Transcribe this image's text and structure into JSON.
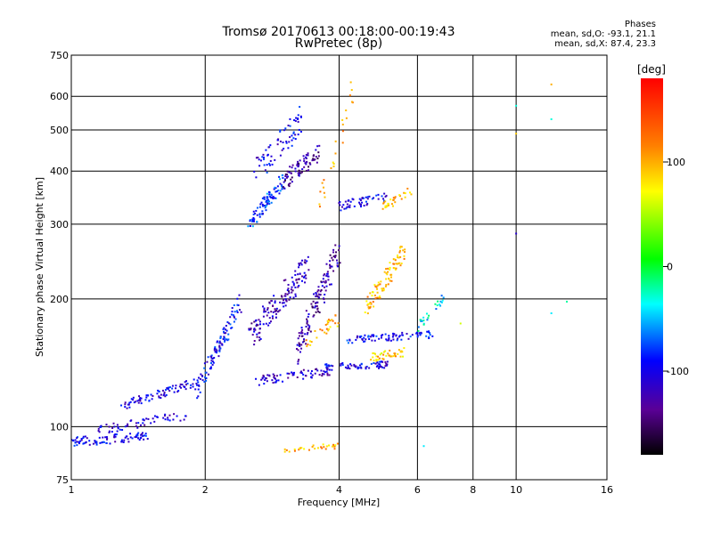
{
  "chart_data": {
    "type": "scatter",
    "title": "Tromsø 20170613 00:18:00-00:19:43",
    "subtitle": "RwPretec (8p)",
    "xlabel": "Frequency [MHz]",
    "ylabel": "Stationary phase Virtual Height [km]",
    "x_scale": "log",
    "y_scale": "log",
    "xlim": [
      1,
      16
    ],
    "ylim": [
      75,
      750
    ],
    "x_ticks": [
      1,
      2,
      4,
      6,
      8,
      10,
      16
    ],
    "y_ticks": [
      75,
      100,
      200,
      300,
      400,
      500,
      600,
      750
    ],
    "grid": true,
    "colorbar": {
      "label": "[deg]",
      "range": [
        -180,
        180
      ],
      "ticks": [
        100,
        0,
        -100
      ]
    },
    "phase_summary": {
      "heading": "Phases",
      "line_o": "mean, sd,O: -93.1, 21.1",
      "line_x": "mean, sd,X: 87.4, 23.3"
    },
    "traces": [
      {
        "f0": 1.0,
        "f1": 1.5,
        "h0": 92,
        "h1": 95,
        "phase": -100,
        "spread": 0.05,
        "n": 90
      },
      {
        "f0": 1.3,
        "f1": 1.95,
        "h0": 112,
        "h1": 128,
        "phase": -105,
        "spread": 0.05,
        "n": 80
      },
      {
        "f0": 1.15,
        "f1": 1.8,
        "h0": 98,
        "h1": 106,
        "phase": -110,
        "spread": 0.05,
        "n": 60
      },
      {
        "f0": 1.9,
        "f1": 2.4,
        "h0": 120,
        "h1": 195,
        "phase": -95,
        "spread": 0.1,
        "n": 110
      },
      {
        "f0": 2.5,
        "f1": 3.0,
        "h0": 300,
        "h1": 380,
        "phase": -80,
        "spread": 0.08,
        "n": 90
      },
      {
        "f0": 2.6,
        "f1": 3.3,
        "h0": 400,
        "h1": 530,
        "phase": -100,
        "spread": 0.15,
        "n": 70
      },
      {
        "f0": 3.0,
        "f1": 3.6,
        "h0": 380,
        "h1": 440,
        "phase": -130,
        "spread": 0.1,
        "n": 80
      },
      {
        "f0": 2.5,
        "f1": 3.4,
        "h0": 160,
        "h1": 240,
        "phase": -120,
        "spread": 0.15,
        "n": 140
      },
      {
        "f0": 3.2,
        "f1": 4.0,
        "h0": 150,
        "h1": 260,
        "phase": -125,
        "spread": 0.15,
        "n": 130
      },
      {
        "f0": 2.6,
        "f1": 3.8,
        "h0": 128,
        "h1": 135,
        "phase": -115,
        "spread": 0.05,
        "n": 70
      },
      {
        "f0": 3.7,
        "f1": 5.2,
        "h0": 138,
        "h1": 140,
        "phase": -105,
        "spread": 0.04,
        "n": 70
      },
      {
        "f0": 4.2,
        "f1": 6.5,
        "h0": 160,
        "h1": 165,
        "phase": -95,
        "spread": 0.04,
        "n": 80
      },
      {
        "f0": 4.0,
        "f1": 5.2,
        "h0": 330,
        "h1": 350,
        "phase": -100,
        "spread": 0.05,
        "n": 50
      },
      {
        "f0": 4.6,
        "f1": 5.6,
        "h0": 190,
        "h1": 260,
        "phase": 95,
        "spread": 0.1,
        "n": 90
      },
      {
        "f0": 4.7,
        "f1": 5.6,
        "h0": 145,
        "h1": 150,
        "phase": 90,
        "spread": 0.05,
        "n": 40
      },
      {
        "f0": 5.0,
        "f1": 5.8,
        "h0": 330,
        "h1": 360,
        "phase": 100,
        "spread": 0.05,
        "n": 30
      },
      {
        "f0": 3.4,
        "f1": 4.0,
        "h0": 160,
        "h1": 180,
        "phase": 100,
        "spread": 0.08,
        "n": 30
      },
      {
        "f0": 6.0,
        "f1": 7.0,
        "h0": 170,
        "h1": 205,
        "phase": -40,
        "spread": 0.05,
        "n": 25
      },
      {
        "f0": 3.0,
        "f1": 4.0,
        "h0": 88,
        "h1": 90,
        "phase": 100,
        "spread": 0.03,
        "n": 30
      },
      {
        "f0": 3.6,
        "f1": 4.3,
        "h0": 330,
        "h1": 620,
        "phase": 105,
        "spread": 0.15,
        "n": 25
      }
    ],
    "scattered_points": [
      {
        "x": 10,
        "y": 285,
        "phase": -110
      },
      {
        "x": 10,
        "y": 570,
        "phase": -30
      },
      {
        "x": 10,
        "y": 490,
        "phase": 90
      },
      {
        "x": 12,
        "y": 640,
        "phase": 100
      },
      {
        "x": 12,
        "y": 530,
        "phase": -30
      },
      {
        "x": 12,
        "y": 185,
        "phase": -40
      },
      {
        "x": 13,
        "y": 197,
        "phase": -20
      },
      {
        "x": 6.2,
        "y": 90,
        "phase": -40
      },
      {
        "x": 7.5,
        "y": 175,
        "phase": 60
      }
    ]
  }
}
